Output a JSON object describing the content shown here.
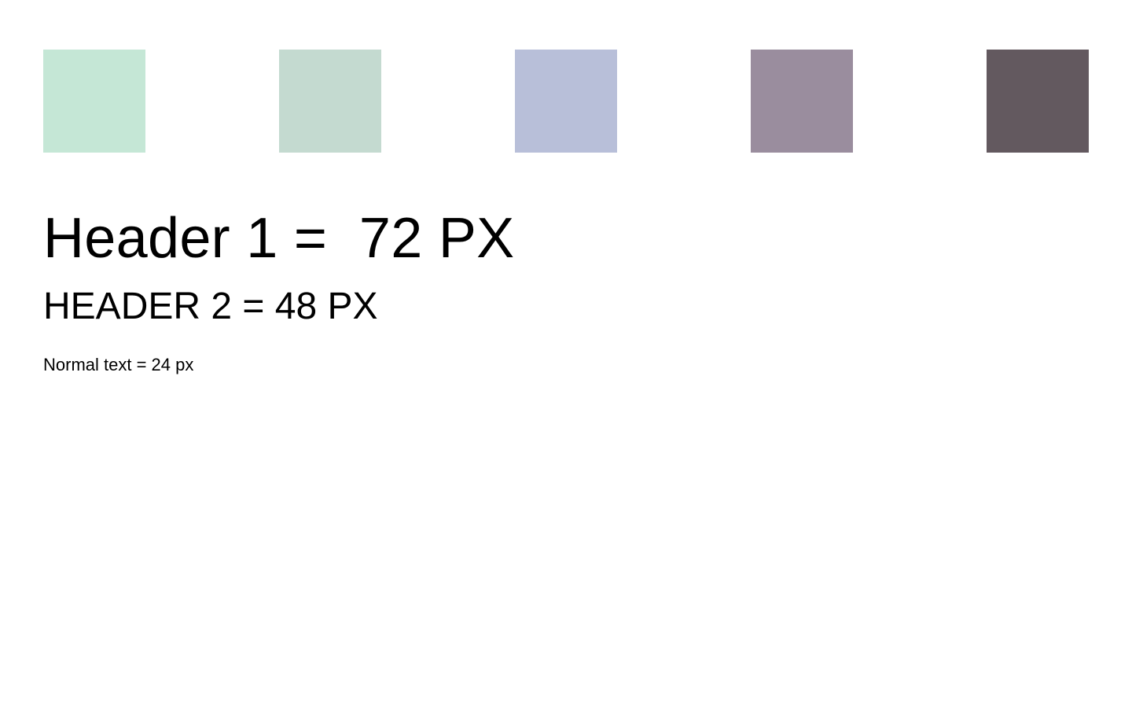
{
  "palette": {
    "colors": [
      "#c5e7d6",
      "#c4dad0",
      "#b8bfd9",
      "#9a8d9e",
      "#63595f"
    ]
  },
  "typography": {
    "header1": "Header 1 =  72 PX",
    "header2": "HEADER 2 = 48 PX",
    "normal": "Normal text = 24 px"
  }
}
